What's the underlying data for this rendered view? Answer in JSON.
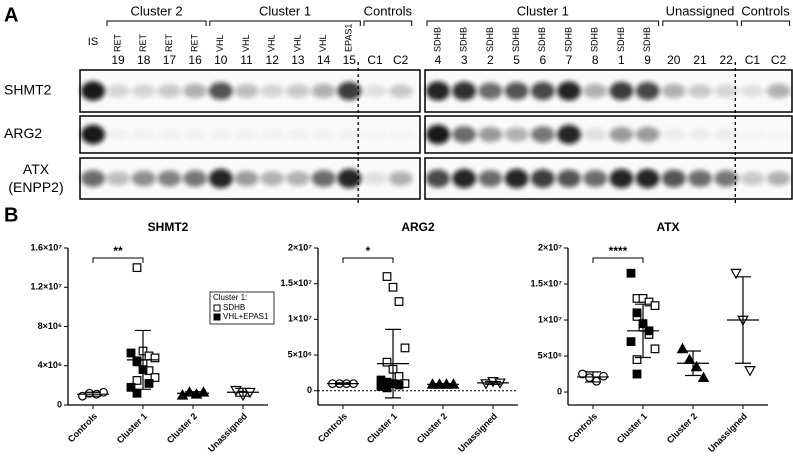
{
  "blot": {
    "label": "A",
    "rows": [
      {
        "label": "SHMT2"
      },
      {
        "label": "ARG2"
      },
      {
        "label": "ATX",
        "sublabel": "(ENPP2)"
      }
    ],
    "boxes": [
      {
        "lead": [
          {
            "id": "IS",
            "bands": [
              0.95,
              0.95,
              0.6
            ]
          }
        ],
        "groups": [
          {
            "label": "Cluster 2",
            "lanes": [
              {
                "type": "RET",
                "id": "19",
                "bands": [
                  0.15,
                  0.03,
                  0.25
                ]
              },
              {
                "type": "RET",
                "id": "18",
                "bands": [
                  0.15,
                  0.03,
                  0.45
                ]
              },
              {
                "type": "RET",
                "id": "17",
                "bands": [
                  0.2,
                  0.03,
                  0.5
                ]
              },
              {
                "type": "RET",
                "id": "16",
                "bands": [
                  0.3,
                  0.03,
                  0.55
                ]
              }
            ]
          },
          {
            "label": "Cluster 1",
            "lanes": [
              {
                "type": "VHL",
                "id": "10",
                "bands": [
                  0.7,
                  0.03,
                  0.9
                ]
              },
              {
                "type": "VHL",
                "id": "11",
                "bands": [
                  0.25,
                  0.03,
                  0.4
                ]
              },
              {
                "type": "VHL",
                "id": "12",
                "bands": [
                  0.15,
                  0.03,
                  0.3
                ]
              },
              {
                "type": "VHL",
                "id": "13",
                "bands": [
                  0.2,
                  0.03,
                  0.3
                ]
              },
              {
                "type": "VHL",
                "id": "14",
                "bands": [
                  0.3,
                  0.03,
                  0.6
                ]
              },
              {
                "type": "EPAS1",
                "id": "15",
                "bands": [
                  0.8,
                  0.03,
                  0.9
                ]
              }
            ]
          },
          {
            "label": "Controls",
            "lanes": [
              {
                "id": "C1",
                "bands": [
                  0.1,
                  0.02,
                  0.1
                ]
              },
              {
                "id": "C2",
                "bands": [
                  0.2,
                  0.02,
                  0.3
                ]
              }
            ]
          }
        ]
      },
      {
        "lead": [],
        "groups": [
          {
            "label": "Cluster 1",
            "lanes": [
              {
                "type": "SDHB",
                "id": "4",
                "bands": [
                  0.9,
                  0.95,
                  0.75
                ]
              },
              {
                "type": "SDHB",
                "id": "3",
                "bands": [
                  0.85,
                  0.6,
                  0.9
                ]
              },
              {
                "type": "SDHB",
                "id": "2",
                "bands": [
                  0.6,
                  0.4,
                  0.6
                ]
              },
              {
                "type": "SDHB",
                "id": "5",
                "bands": [
                  0.7,
                  0.3,
                  0.9
                ]
              },
              {
                "type": "SDHB",
                "id": "6",
                "bands": [
                  0.75,
                  0.55,
                  0.8
                ]
              },
              {
                "type": "SDHB",
                "id": "7",
                "bands": [
                  0.9,
                  0.9,
                  0.7
                ]
              },
              {
                "type": "SDHB",
                "id": "8",
                "bands": [
                  0.3,
                  0.1,
                  0.6
                ]
              },
              {
                "type": "SDHB",
                "id": "1",
                "bands": [
                  0.8,
                  0.4,
                  0.9
                ]
              },
              {
                "type": "SDHB",
                "id": "9",
                "bands": [
                  0.75,
                  0.4,
                  0.9
                ]
              }
            ]
          },
          {
            "label": "Unassigned",
            "lanes": [
              {
                "id": "20",
                "bands": [
                  0.3,
                  0.05,
                  0.7
                ]
              },
              {
                "id": "21",
                "bands": [
                  0.2,
                  0.05,
                  0.6
                ]
              },
              {
                "id": "22",
                "bands": [
                  0.15,
                  0.05,
                  0.55
                ]
              }
            ]
          },
          {
            "label": "Controls",
            "lanes": [
              {
                "id": "C1",
                "bands": [
                  0.1,
                  0.02,
                  0.2
                ]
              },
              {
                "id": "C2",
                "bands": [
                  0.3,
                  0.02,
                  0.3
                ]
              }
            ]
          }
        ]
      }
    ]
  },
  "panel_b_label": "B",
  "chart_data": [
    {
      "type": "strip",
      "title": "SHMT2",
      "significance": "**",
      "categories": [
        "Controls",
        "Cluster 1",
        "Cluster 2",
        "Unassigned"
      ],
      "ylim": [
        0,
        16000000
      ],
      "yticks": [
        0,
        {
          "value": 4000000,
          "label": "4×10⁶"
        },
        {
          "value": 8000000,
          "label": "8×10⁶"
        },
        {
          "value": 12000000,
          "label": "1.2×10⁷"
        },
        {
          "value": 16000000,
          "label": "1.6×10⁷"
        }
      ],
      "legend_title": "Cluster 1:",
      "series": [
        {
          "marker": "circle-open",
          "values": [
            [
              900000,
              1200000,
              1100000,
              1300000
            ],
            [],
            [],
            []
          ]
        },
        {
          "name": "SDHB",
          "marker": "square-open",
          "values": [
            [],
            [
              14000000,
              5500000,
              5000000,
              4800000,
              4500000,
              4200000,
              3500000,
              2800000,
              2500000
            ],
            [],
            []
          ]
        },
        {
          "name": "VHL+EPAS1",
          "marker": "square-filled",
          "values": [
            [],
            [
              5300000,
              4400000,
              3600000,
              2200000,
              1800000,
              1200000
            ],
            [],
            []
          ]
        },
        {
          "marker": "triangle-filled",
          "values": [
            [],
            [],
            [
              1000000,
              1300000,
              1100000,
              1300000
            ],
            []
          ]
        },
        {
          "marker": "triangle-down-open",
          "values": [
            [],
            [],
            [],
            [
              1500000,
              1000000,
              1300000
            ]
          ]
        }
      ],
      "mean": [
        1100000,
        4600000,
        1200000,
        1300000
      ],
      "sd": [
        200000,
        3000000,
        150000,
        400000
      ]
    },
    {
      "type": "strip",
      "title": "ARG2",
      "significance": "*",
      "zero_line": true,
      "categories": [
        "Controls",
        "Cluster 1",
        "Cluster 2",
        "Unassigned"
      ],
      "ylim": [
        -2000000,
        20000000
      ],
      "yticks": [
        0,
        {
          "value": 5000000,
          "label": "5×10⁶"
        },
        {
          "value": 10000000,
          "label": "1×10⁷"
        },
        {
          "value": 15000000,
          "label": "1.5×10⁷"
        },
        {
          "value": 20000000,
          "label": "2×10⁷"
        }
      ],
      "series": [
        {
          "marker": "circle-open",
          "values": [
            [
              1000000,
              1000000,
              1000000,
              1000000
            ],
            [],
            [],
            []
          ]
        },
        {
          "marker": "square-open",
          "values": [
            [],
            [
              16000000,
              14500000,
              12500000,
              6000000,
              4000000,
              3000000,
              2000000,
              1000000,
              500000
            ],
            [],
            []
          ]
        },
        {
          "marker": "square-filled",
          "values": [
            [],
            [
              1500000,
              1200000,
              1000000,
              800000,
              600000,
              400000
            ],
            [],
            []
          ]
        },
        {
          "marker": "triangle-filled",
          "values": [
            [],
            [],
            [
              900000,
              900000,
              900000,
              900000
            ],
            []
          ]
        },
        {
          "marker": "triangle-down-open",
          "values": [
            [],
            [],
            [],
            [
              1000000,
              1300000,
              1100000
            ]
          ]
        }
      ],
      "mean": [
        1000000,
        3800000,
        900000,
        1100000
      ],
      "sd": [
        100000,
        4800000,
        100000,
        200000
      ]
    },
    {
      "type": "strip",
      "title": "ATX",
      "significance": "****",
      "categories": [
        "Controls",
        "Cluster 1",
        "Cluster 2",
        "Unassigned"
      ],
      "ylim": [
        -1800000,
        20000000
      ],
      "yticks": [
        0,
        {
          "value": 5000000,
          "label": "5×10⁶"
        },
        {
          "value": 10000000,
          "label": "1×10⁷"
        },
        {
          "value": 15000000,
          "label": "1.5×10⁷"
        },
        {
          "value": 20000000,
          "label": "2×10⁷"
        }
      ],
      "series": [
        {
          "marker": "circle-open",
          "values": [
            [
              2500000,
              2000000,
              1500000,
              2200000
            ],
            [],
            [],
            []
          ]
        },
        {
          "marker": "square-open",
          "values": [
            [],
            [
              13000000,
              13000000,
              12500000,
              12000000,
              10500000,
              9000000,
              8000000,
              6000000,
              4500000
            ],
            [],
            []
          ]
        },
        {
          "marker": "square-filled",
          "values": [
            [],
            [
              16500000,
              11000000,
              9500000,
              8500000,
              7000000,
              2500000
            ],
            [],
            []
          ]
        },
        {
          "marker": "triangle-filled",
          "values": [
            [],
            [],
            [
              6000000,
              4500000,
              3500000,
              2000000
            ],
            []
          ]
        },
        {
          "marker": "triangle-down-open",
          "values": [
            [],
            [],
            [],
            [
              16500000,
              10000000,
              3000000
            ]
          ]
        }
      ],
      "mean": [
        2100000,
        8500000,
        4000000,
        10000000
      ],
      "sd": [
        700000,
        3700000,
        1700000,
        6000000
      ]
    }
  ]
}
